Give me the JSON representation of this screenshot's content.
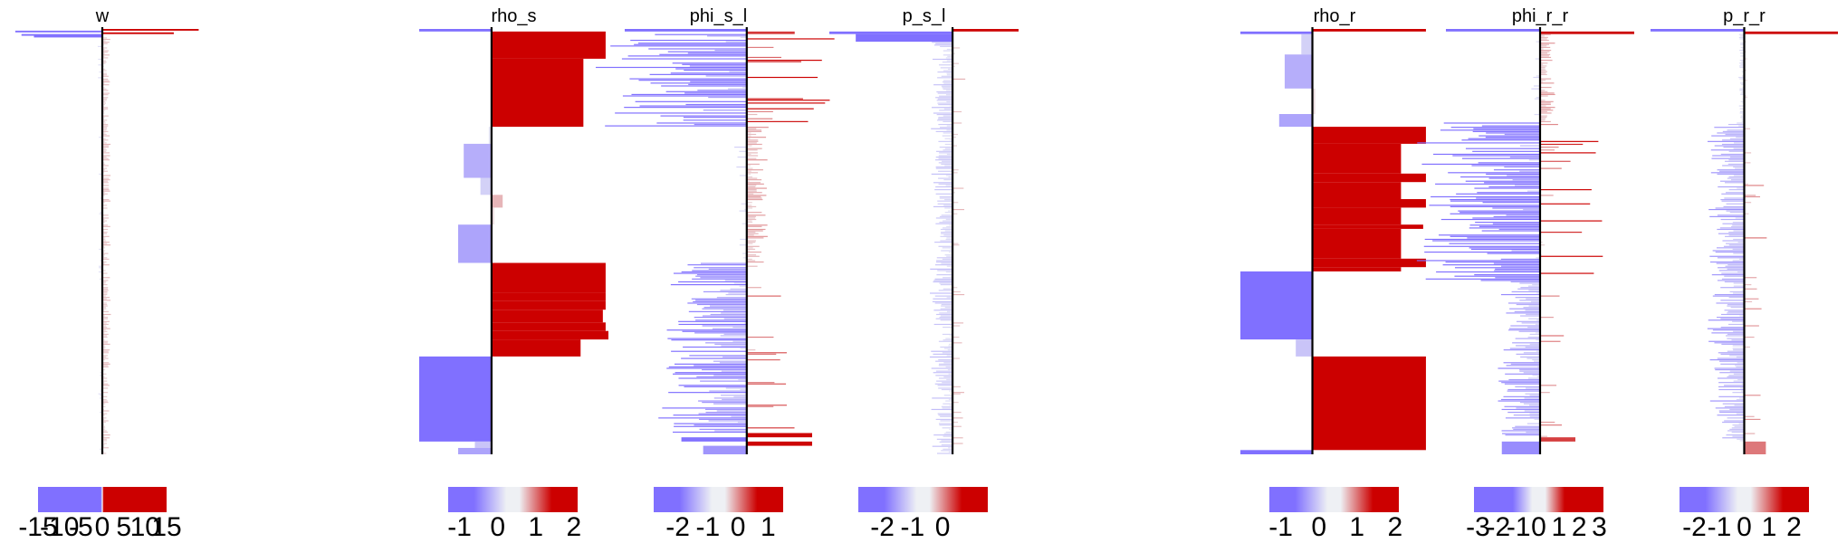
{
  "chart_data": {
    "type": "bar",
    "orientation": "horizontal",
    "colors": {
      "negative": "#8070ff",
      "neutral": "#eef0f4",
      "positive": "#cc0000",
      "axis": "#000000"
    },
    "panels": [
      {
        "title": "w",
        "xlim": [
          -15,
          15
        ],
        "colorbar": {
          "ticks": [
            -15,
            -10,
            -5,
            0,
            5,
            10,
            15
          ],
          "tick_labels": [
            "-15",
            "-10",
            "-5",
            "0",
            "5",
            "10",
            "15"
          ],
          "scale": "diverging",
          "gradient": "stepped"
        },
        "segments": [
          {
            "from": 0,
            "to": 0.004,
            "value": 15.5
          },
          {
            "from": 0.004,
            "to": 0.008,
            "value": -14
          },
          {
            "from": 0.008,
            "to": 0.012,
            "value": 11.5
          },
          {
            "from": 0.012,
            "to": 0.016,
            "value": -13
          },
          {
            "from": 0.016,
            "to": 0.02,
            "value": -11
          },
          {
            "from": 0.02,
            "to": 1.0,
            "value": 0.8,
            "pattern": "noise"
          }
        ]
      },
      {
        "title": "rho_s",
        "xlim": [
          -1.3,
          2.1
        ],
        "colorbar": {
          "ticks": [
            -1,
            0,
            1,
            2
          ],
          "tick_labels": [
            "-1",
            "0",
            "1",
            "2"
          ],
          "scale": "diverging",
          "gradient": "smooth"
        },
        "segments": [
          {
            "from": 0.0,
            "to": 0.006,
            "value": -1.3
          },
          {
            "from": 0.006,
            "to": 0.07,
            "value": 2.05
          },
          {
            "from": 0.07,
            "to": 0.23,
            "value": 1.65
          },
          {
            "from": 0.23,
            "to": 0.27,
            "value": -0.05
          },
          {
            "from": 0.27,
            "to": 0.35,
            "value": -0.5
          },
          {
            "from": 0.35,
            "to": 0.39,
            "value": -0.2
          },
          {
            "from": 0.39,
            "to": 0.42,
            "value": 0.2
          },
          {
            "from": 0.42,
            "to": 0.46,
            "value": 0.05
          },
          {
            "from": 0.46,
            "to": 0.55,
            "value": -0.6
          },
          {
            "from": 0.55,
            "to": 0.62,
            "value": 2.05
          },
          {
            "from": 0.62,
            "to": 0.64,
            "value": 2.05
          },
          {
            "from": 0.64,
            "to": 0.66,
            "value": 2.05
          },
          {
            "from": 0.66,
            "to": 0.69,
            "value": 2.0
          },
          {
            "from": 0.69,
            "to": 0.71,
            "value": 2.05
          },
          {
            "from": 0.71,
            "to": 0.73,
            "value": 2.1
          },
          {
            "from": 0.73,
            "to": 0.77,
            "value": 1.6
          },
          {
            "from": 0.77,
            "to": 0.97,
            "value": -1.3
          },
          {
            "from": 0.97,
            "to": 0.985,
            "value": -0.3
          },
          {
            "from": 0.985,
            "to": 1.0,
            "value": -0.6
          }
        ]
      },
      {
        "title": "phi_s_l",
        "xlim": [
          -2.8,
          1.5
        ],
        "colorbar": {
          "ticks": [
            -2,
            -1,
            0,
            1
          ],
          "tick_labels": [
            "-2",
            "-1",
            "0",
            "1"
          ],
          "scale": "diverging",
          "gradient": "smooth"
        },
        "segments": [
          {
            "from": 0.0,
            "to": 0.006,
            "value": -2.8
          },
          {
            "from": 0.006,
            "to": 0.012,
            "value": 1.1
          },
          {
            "from": 0.012,
            "to": 0.23,
            "value": -2.1,
            "pattern": "noise"
          },
          {
            "from": 0.23,
            "to": 0.55,
            "value": 0.3,
            "pattern": "noise"
          },
          {
            "from": 0.55,
            "to": 0.95,
            "value": -1.2,
            "pattern": "noise"
          },
          {
            "from": 0.95,
            "to": 0.96,
            "value": 1.5
          },
          {
            "from": 0.96,
            "to": 0.97,
            "value": -1.5
          },
          {
            "from": 0.97,
            "to": 0.98,
            "value": 1.5
          },
          {
            "from": 0.98,
            "to": 1.0,
            "value": -1.0
          }
        ]
      },
      {
        "title": "p_s_l",
        "xlim": [
          -2.8,
          1.5
        ],
        "colorbar": {
          "ticks": [
            -2,
            -1,
            0
          ],
          "tick_labels": [
            "-2",
            "-1",
            "0"
          ],
          "scale": "diverging",
          "gradient": "smooth"
        },
        "segments": [
          {
            "from": 0.0,
            "to": 0.006,
            "value": 1.5
          },
          {
            "from": 0.006,
            "to": 0.012,
            "value": -2.8
          },
          {
            "from": 0.012,
            "to": 0.03,
            "value": -2.2
          },
          {
            "from": 0.03,
            "to": 1.0,
            "value": -0.3,
            "pattern": "noise"
          }
        ]
      },
      {
        "title": "rho_r",
        "xlim": [
          -1.3,
          2.1
        ],
        "colorbar": {
          "ticks": [
            -1,
            0,
            1,
            2
          ],
          "tick_labels": [
            "-1",
            "0",
            "1",
            "2"
          ],
          "scale": "diverging",
          "gradient": "smooth"
        },
        "segments": [
          {
            "from": 0.0,
            "to": 0.006,
            "value": 2.05
          },
          {
            "from": 0.006,
            "to": 0.012,
            "value": -1.3
          },
          {
            "from": 0.012,
            "to": 0.06,
            "value": -0.2
          },
          {
            "from": 0.06,
            "to": 0.14,
            "value": -0.5
          },
          {
            "from": 0.14,
            "to": 0.2,
            "value": 0.05
          },
          {
            "from": 0.2,
            "to": 0.23,
            "value": -0.6
          },
          {
            "from": 0.23,
            "to": 0.27,
            "value": 2.05
          },
          {
            "from": 0.27,
            "to": 0.34,
            "value": 1.6
          },
          {
            "from": 0.34,
            "to": 0.36,
            "value": 2.05
          },
          {
            "from": 0.36,
            "to": 0.4,
            "value": 1.6
          },
          {
            "from": 0.4,
            "to": 0.42,
            "value": 2.05
          },
          {
            "from": 0.42,
            "to": 0.46,
            "value": 1.6
          },
          {
            "from": 0.46,
            "to": 0.47,
            "value": 2.0
          },
          {
            "from": 0.47,
            "to": 0.54,
            "value": 1.6
          },
          {
            "from": 0.54,
            "to": 0.56,
            "value": 2.05
          },
          {
            "from": 0.56,
            "to": 0.57,
            "value": 1.6
          },
          {
            "from": 0.57,
            "to": 0.73,
            "value": -1.3
          },
          {
            "from": 0.73,
            "to": 0.77,
            "value": -0.3
          },
          {
            "from": 0.77,
            "to": 0.99,
            "value": 2.05
          },
          {
            "from": 0.99,
            "to": 1.0,
            "value": -1.3
          }
        ]
      },
      {
        "title": "phi_r_r",
        "xlim": [
          -3.2,
          3.2
        ],
        "colorbar": {
          "ticks": [
            -3,
            -2,
            -1,
            0,
            1,
            2,
            3
          ],
          "tick_labels": [
            "-3",
            "-2",
            "-1",
            "0",
            "1",
            "2",
            "3"
          ],
          "scale": "diverging",
          "gradient": "stepped"
        },
        "segments": [
          {
            "from": 0.0,
            "to": 0.006,
            "value": -3.2
          },
          {
            "from": 0.006,
            "to": 0.012,
            "value": 3.2
          },
          {
            "from": 0.012,
            "to": 0.22,
            "value": 0.3,
            "pattern": "noise"
          },
          {
            "from": 0.22,
            "to": 0.6,
            "value": -2.5,
            "pattern": "noise"
          },
          {
            "from": 0.6,
            "to": 0.96,
            "value": -0.9,
            "pattern": "noise"
          },
          {
            "from": 0.96,
            "to": 0.97,
            "value": 1.2
          },
          {
            "from": 0.97,
            "to": 1.0,
            "value": -1.3
          }
        ]
      },
      {
        "title": "p_r_r",
        "xlim": [
          -2.6,
          2.6
        ],
        "colorbar": {
          "ticks": [
            -2,
            -1,
            0,
            1,
            2
          ],
          "tick_labels": [
            "-2",
            "-1",
            "0",
            "1",
            "2"
          ],
          "scale": "diverging",
          "gradient": "smooth"
        },
        "segments": [
          {
            "from": 0.0,
            "to": 0.006,
            "value": -2.6
          },
          {
            "from": 0.006,
            "to": 0.012,
            "value": 2.6
          },
          {
            "from": 0.012,
            "to": 0.22,
            "value": -0.1,
            "pattern": "noise"
          },
          {
            "from": 0.22,
            "to": 0.97,
            "value": -0.6,
            "pattern": "noise"
          },
          {
            "from": 0.97,
            "to": 1.0,
            "value": 0.6
          }
        ]
      }
    ]
  }
}
